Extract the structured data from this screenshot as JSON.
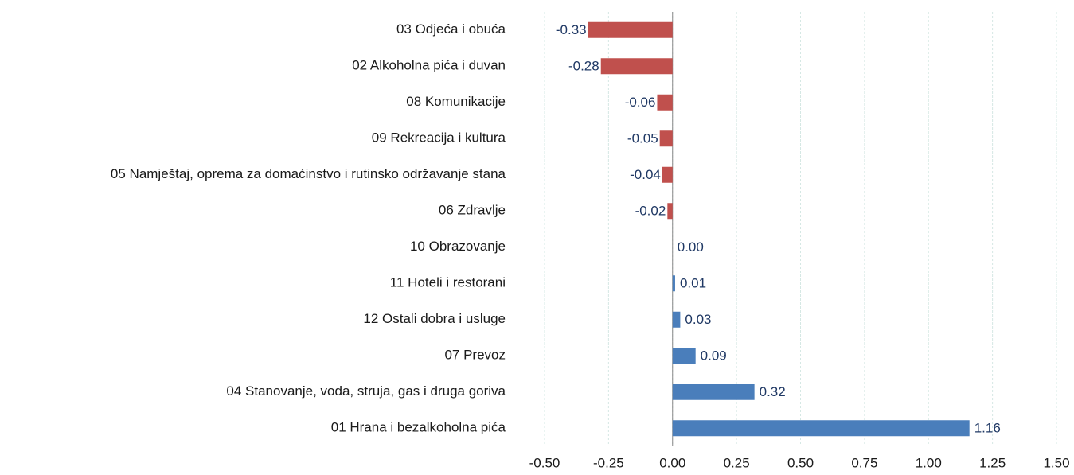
{
  "chart_data": {
    "type": "barh",
    "categories": [
      "03 Odjeća i obuća",
      "02 Alkoholna pića i duvan",
      "08 Komunikacije",
      "09 Rekreacija i kultura",
      "05 Namještaj, oprema za domaćinstvo i rutinsko održavanje stana",
      "06 Zdravlje",
      "10 Obrazovanje",
      "11 Hoteli i restorani",
      "12 Ostali dobra i usluge",
      "07 Prevoz",
      "04 Stanovanje, voda, struja, gas i druga goriva",
      "01 Hrana i bezalkoholna pića"
    ],
    "values": [
      -0.33,
      -0.28,
      -0.06,
      -0.05,
      -0.04,
      -0.02,
      0,
      0.01,
      0.03,
      0.09,
      0.32,
      1.16
    ],
    "value_labels": [
      "-0.33",
      "-0.28",
      "-0.06",
      "-0.05",
      "-0.04",
      "-0.02",
      "0.00",
      "0.01",
      "0.03",
      "0.09",
      "0.32",
      "1.16"
    ],
    "color": "#4a7ebb",
    "negative_color": "#c0504d",
    "xlim": [
      -0.5,
      1.5
    ],
    "xticks": [
      {
        "value": -0.5,
        "label": "-0.50"
      },
      -0.25,
      {
        "value": 0,
        "label": "0.00"
      },
      0.25,
      {
        "value": 0.5,
        "label": "0.50"
      },
      0.75,
      {
        "value": 1,
        "label": "1.00"
      },
      1.25,
      {
        "value": 1.5,
        "label": "1.50"
      }
    ],
    "grid": true
  }
}
